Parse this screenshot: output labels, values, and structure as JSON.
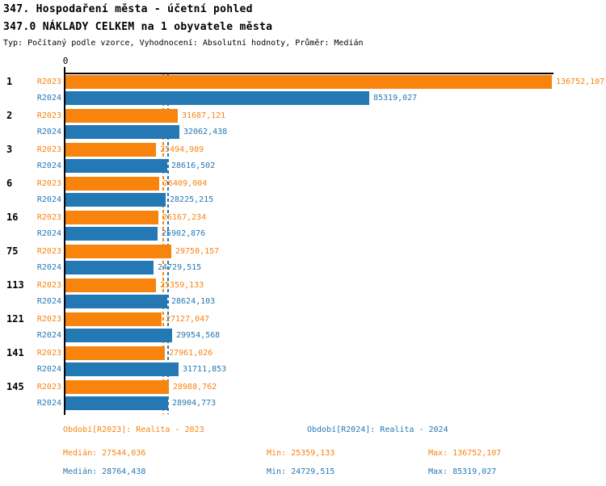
{
  "header": {
    "title_line1": "347. Hospodaření města - účetní pohled",
    "title_line2": "347.0 NÁKLADY CELKEM na 1 obyvatele města",
    "meta": "Typ: Počítaný podle vzorce, Vyhodnocení: Absolutní hodnoty, Průměr: Medián"
  },
  "colors": {
    "r2023": "#F8830D",
    "r2024": "#2478B4",
    "axis": "#000000",
    "background": "#FFFFFF"
  },
  "chart_data": {
    "type": "bar",
    "orientation": "horizontal",
    "title": "347.0 NÁKLADY CELKEM na 1 obyvatele města",
    "axis_zero_label": "0",
    "grid": false,
    "legend_position": "bottom",
    "xlim": [
      0,
      136752.107
    ],
    "categories": [
      "1",
      "2",
      "3",
      "6",
      "16",
      "75",
      "113",
      "121",
      "141",
      "145"
    ],
    "series": [
      {
        "name": "R2023",
        "color": "#F8830D",
        "values": [
          136752.107,
          31687.121,
          25494.989,
          26409.004,
          26167.234,
          29750.157,
          25359.133,
          27127.047,
          27961.026,
          28988.762
        ],
        "value_labels": [
          "136752,107",
          "31687,121",
          "25494,989",
          "26409,004",
          "26167,234",
          "29750,157",
          "25359,133",
          "27127,047",
          "27961,026",
          "28988,762"
        ]
      },
      {
        "name": "R2024",
        "color": "#2478B4",
        "values": [
          85319.027,
          32062.438,
          28616.502,
          28225.215,
          25902.876,
          24729.515,
          28624.103,
          29954.568,
          31711.853,
          28904.773
        ],
        "value_labels": [
          "85319,027",
          "32062,438",
          "28616,502",
          "28225,215",
          "25902,876",
          "24729,515",
          "28624,103",
          "29954,568",
          "31711,853",
          "28904,773"
        ]
      }
    ],
    "median_lines": [
      {
        "series": "R2023",
        "value": 27544.036
      },
      {
        "series": "R2024",
        "value": 28764.438
      }
    ]
  },
  "legend": {
    "r2023_label": "Období[R2023]: Realita - 2023",
    "r2024_label": "Období[R2024]: Realita - 2024"
  },
  "stats": {
    "r2023": {
      "median": "Medián: 27544,036",
      "min": "Min: 25359,133",
      "max": "Max: 136752,107"
    },
    "r2024": {
      "median": "Medián: 28764,438",
      "min": "Min: 24729,515",
      "max": "Max: 85319,027"
    }
  }
}
